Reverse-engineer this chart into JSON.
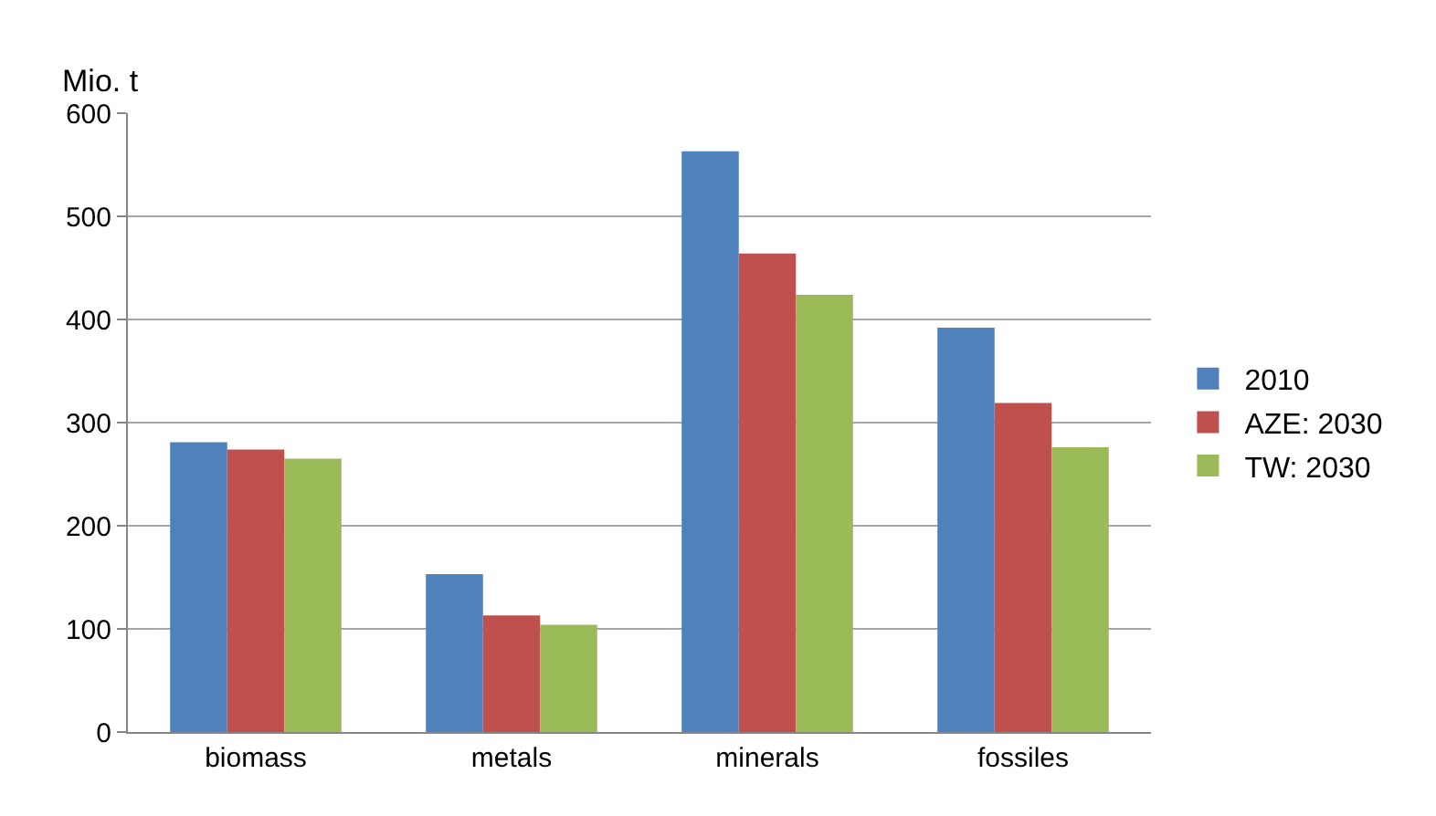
{
  "chart_data": {
    "type": "bar",
    "ylabel": "Mio. t",
    "categories": [
      "biomass",
      "metals",
      "minerals",
      "fossiles"
    ],
    "series": [
      {
        "name": "2010",
        "color": "#4f81bd",
        "values": [
          281,
          153,
          563,
          392
        ]
      },
      {
        "name": "AZE: 2030",
        "color": "#c0504d",
        "values": [
          274,
          113,
          464,
          319
        ]
      },
      {
        "name": "TW: 2030",
        "color": "#9bbb59",
        "values": [
          265,
          104,
          424,
          276
        ]
      }
    ],
    "ylim": [
      0,
      600
    ],
    "yticks": [
      0,
      100,
      200,
      300,
      400,
      500,
      600
    ],
    "grid": "y",
    "legend": "right"
  }
}
